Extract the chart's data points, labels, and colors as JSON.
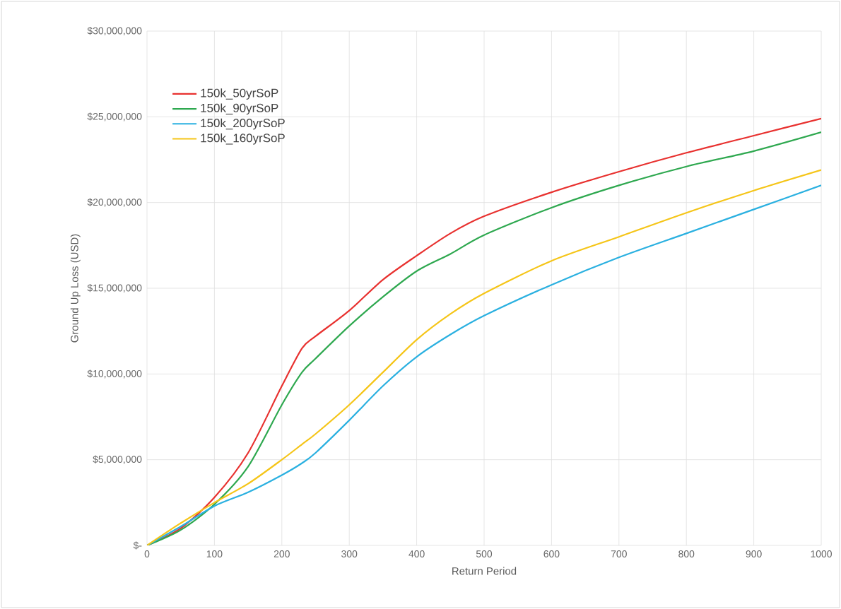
{
  "chart_data": {
    "type": "line",
    "xlabel": "Return Period",
    "ylabel": "Ground Up Loss (USD)",
    "x": [
      0,
      50,
      100,
      150,
      200,
      230,
      250,
      300,
      350,
      400,
      450,
      500,
      600,
      700,
      800,
      900,
      1000
    ],
    "series": [
      {
        "name": "150k_50yrSoP",
        "color": "#e8312f",
        "values": [
          0,
          1000000,
          2800000,
          5400000,
          9300000,
          11500000,
          12200000,
          13700000,
          15500000,
          16900000,
          18200000,
          19200000,
          20600000,
          21800000,
          22900000,
          23900000,
          24900000
        ]
      },
      {
        "name": "150k_90yrSoP",
        "color": "#2ea84f",
        "values": [
          0,
          900000,
          2400000,
          4600000,
          8200000,
          10100000,
          10900000,
          12800000,
          14500000,
          16000000,
          17000000,
          18100000,
          19700000,
          21000000,
          22100000,
          23000000,
          24100000
        ]
      },
      {
        "name": "150k_200yrSoP",
        "color": "#2ab0e0",
        "values": [
          0,
          1100000,
          2300000,
          3100000,
          4100000,
          4800000,
          5400000,
          7300000,
          9300000,
          11000000,
          12300000,
          13400000,
          15200000,
          16800000,
          18200000,
          19600000,
          21000000
        ]
      },
      {
        "name": "150k_160yrSoP",
        "color": "#f5c518",
        "values": [
          0,
          1300000,
          2500000,
          3600000,
          5000000,
          5900000,
          6500000,
          8200000,
          10100000,
          12000000,
          13500000,
          14700000,
          16600000,
          18000000,
          19400000,
          20700000,
          21900000
        ]
      }
    ],
    "xlim": [
      0,
      1000
    ],
    "xticks": [
      0,
      100,
      200,
      300,
      400,
      500,
      600,
      700,
      800,
      900,
      1000
    ],
    "ylim": [
      0,
      30000000
    ],
    "yticks": [
      {
        "value": 0,
        "label": "$-"
      },
      {
        "value": 5000000,
        "label": "$5,000,000"
      },
      {
        "value": 10000000,
        "label": "$10,000,000"
      },
      {
        "value": 15000000,
        "label": "$15,000,000"
      },
      {
        "value": 20000000,
        "label": "$20,000,000"
      },
      {
        "value": 25000000,
        "label": "$25,000,000"
      },
      {
        "value": 30000000,
        "label": "$30,000,000"
      }
    ],
    "grid": true,
    "legend": "top left",
    "marker": "none",
    "line_style": "solid"
  }
}
